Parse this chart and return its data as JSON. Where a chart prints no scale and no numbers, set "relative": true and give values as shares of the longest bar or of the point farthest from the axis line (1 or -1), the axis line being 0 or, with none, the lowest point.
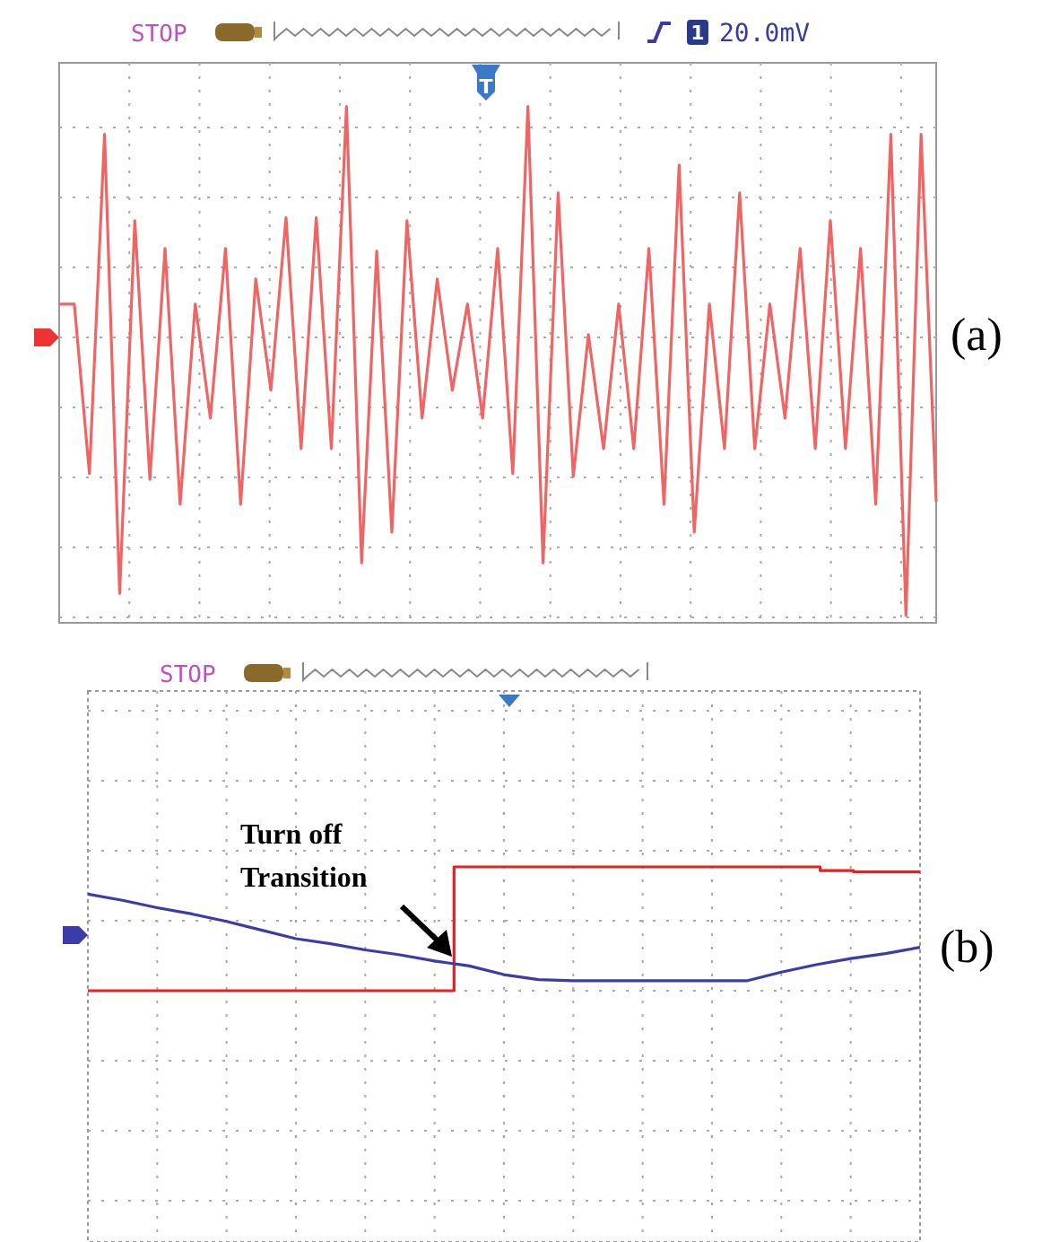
{
  "chart_data": [
    {
      "type": "line",
      "title": "(a)",
      "relative": true,
      "grid": true,
      "annotations": [
        "STOP",
        "1",
        "20.0mV",
        "T"
      ],
      "categories": [
        null,
        null,
        null,
        null,
        null,
        null,
        null,
        null,
        null,
        null,
        null,
        null,
        null,
        null,
        null,
        null,
        null,
        null,
        null,
        null,
        null,
        null,
        null,
        null,
        null,
        null,
        null,
        null,
        null,
        null,
        null,
        null,
        null,
        null,
        null,
        null,
        null,
        null,
        null,
        null,
        null,
        null,
        null,
        null,
        null,
        null,
        null,
        null,
        null,
        null,
        null,
        null,
        null,
        null,
        null,
        null,
        null,
        null,
        null
      ],
      "series": [
        {
          "color": "#f06464",
          "values": [
            0.12,
            0.12,
            -0.49,
            0.73,
            -0.92,
            0.42,
            -0.51,
            0.32,
            -0.6,
            0.12,
            -0.29,
            0.32,
            -0.6,
            0.21,
            -0.19,
            0.43,
            -0.4,
            0.43,
            -0.4,
            0.83,
            -0.81,
            0.31,
            -0.7,
            0.42,
            -0.29,
            0.21,
            -0.19,
            0.12,
            -0.29,
            0.32,
            -0.49,
            0.83,
            -0.81,
            0.52,
            -0.5,
            0.01,
            -0.4,
            0.12,
            -0.4,
            0.32,
            -0.6,
            0.62,
            -0.7,
            0.12,
            -0.4,
            0.52,
            -0.4,
            0.12,
            -0.29,
            0.32,
            -0.4,
            0.42,
            -0.4,
            0.32,
            -0.6,
            0.73,
            -1,
            0.73,
            -0.59
          ]
        }
      ]
    },
    {
      "type": "line",
      "title": "(b)",
      "relative": true,
      "grid": true,
      "annotations": [
        "STOP",
        "Turn off Transition"
      ],
      "categories": [
        null,
        null,
        null,
        null,
        null,
        null,
        null,
        null,
        null,
        null,
        null,
        null,
        null,
        null,
        null,
        null,
        null,
        null,
        null,
        null,
        null,
        null,
        null,
        null,
        null
      ],
      "series": [
        {
          "type": "step",
          "color": "#e32222",
          "values": [
            0,
            0,
            0,
            0,
            0,
            0,
            0,
            0,
            0,
            0,
            0,
            1,
            1,
            1,
            1,
            1,
            1,
            1,
            1,
            1,
            1,
            1,
            0.97,
            0.96,
            0.96
          ]
        },
        {
          "color": "#3c3ca8",
          "values": [
            0.78,
            0.73,
            0.67,
            0.62,
            0.56,
            0.49,
            0.42,
            0.38,
            0.33,
            0.29,
            0.24,
            0.2,
            0.13,
            0.09,
            0.08,
            0.08,
            0.08,
            0.08,
            0.08,
            0.08,
            0.15,
            0.21,
            0.26,
            0.3,
            0.35
          ]
        }
      ]
    }
  ]
}
